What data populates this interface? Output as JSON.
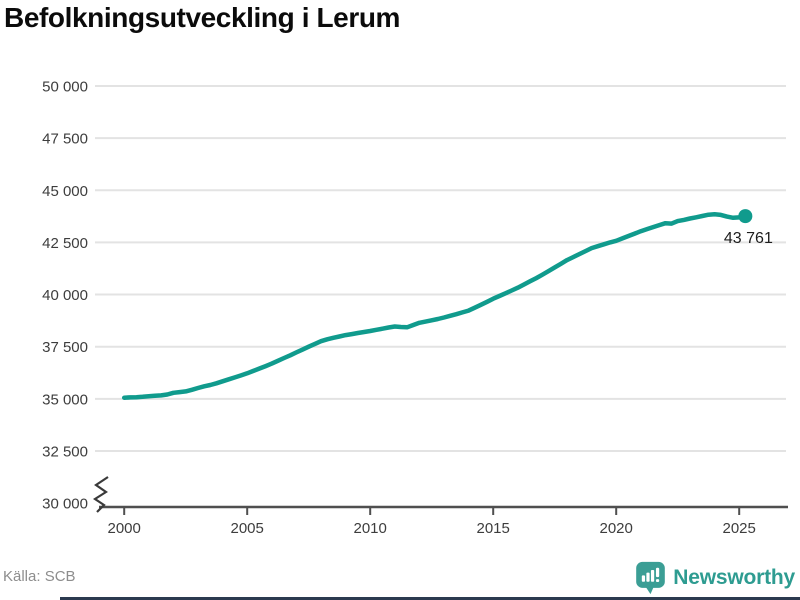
{
  "title": "Befolkningsutveckling i Lerum",
  "source": "Källa: SCB",
  "branding": {
    "name": "Newsworthy",
    "color": "#2e9c91"
  },
  "colors": {
    "line": "#109b8d",
    "grid": "#e3e3e3",
    "axis": "#4f4f4f",
    "tick_label": "#3d3d3d",
    "title": "#0b0b0b",
    "source": "#8d8d8d",
    "annotation": "#1d1d1d",
    "bottom_bar": "#2b3a4f"
  },
  "chart_data": {
    "type": "line",
    "title": "Befolkningsutveckling i Lerum",
    "xlabel": "",
    "ylabel": "",
    "xlim": [
      1999.5,
      2026.5
    ],
    "ylim": [
      30000,
      50000
    ],
    "grid": "horizontal",
    "axis_break": true,
    "legend_position": "none",
    "y_ticks": [
      {
        "value": 50000,
        "label": "50 000"
      },
      {
        "value": 47500,
        "label": "47 500"
      },
      {
        "value": 45000,
        "label": "45 000"
      },
      {
        "value": 42500,
        "label": "42 500"
      },
      {
        "value": 40000,
        "label": "40 000"
      },
      {
        "value": 37500,
        "label": "37 500"
      },
      {
        "value": 35000,
        "label": "35 000"
      },
      {
        "value": 32500,
        "label": "32 500"
      },
      {
        "value": 30000,
        "label": "30 000"
      }
    ],
    "x_ticks": [
      {
        "value": 2000,
        "label": "2000"
      },
      {
        "value": 2005,
        "label": "2005"
      },
      {
        "value": 2010,
        "label": "2010"
      },
      {
        "value": 2015,
        "label": "2015"
      },
      {
        "value": 2020,
        "label": "2020"
      },
      {
        "value": 2025,
        "label": "2025"
      }
    ],
    "end_annotation": {
      "label": "43 761",
      "value": 43761,
      "x": 2025.25
    },
    "series": [
      {
        "name": "Befolkning i Lerum",
        "color": "#109b8d",
        "points": [
          [
            2000.0,
            35055
          ],
          [
            2000.25,
            35070
          ],
          [
            2000.5,
            35080
          ],
          [
            2000.75,
            35100
          ],
          [
            2001.0,
            35125
          ],
          [
            2001.25,
            35150
          ],
          [
            2001.5,
            35165
          ],
          [
            2001.75,
            35210
          ],
          [
            2002.0,
            35290
          ],
          [
            2002.25,
            35325
          ],
          [
            2002.5,
            35355
          ],
          [
            2002.75,
            35435
          ],
          [
            2003.0,
            35520
          ],
          [
            2003.25,
            35600
          ],
          [
            2003.5,
            35665
          ],
          [
            2003.75,
            35745
          ],
          [
            2004.0,
            35840
          ],
          [
            2004.25,
            35935
          ],
          [
            2004.5,
            36030
          ],
          [
            2004.75,
            36125
          ],
          [
            2005.0,
            36225
          ],
          [
            2005.25,
            36340
          ],
          [
            2005.5,
            36455
          ],
          [
            2005.75,
            36570
          ],
          [
            2006.0,
            36690
          ],
          [
            2006.25,
            36825
          ],
          [
            2006.5,
            36960
          ],
          [
            2006.75,
            37090
          ],
          [
            2007.0,
            37225
          ],
          [
            2007.25,
            37360
          ],
          [
            2007.5,
            37500
          ],
          [
            2007.75,
            37635
          ],
          [
            2008.0,
            37765
          ],
          [
            2008.25,
            37855
          ],
          [
            2008.5,
            37925
          ],
          [
            2008.75,
            37990
          ],
          [
            2009.0,
            38055
          ],
          [
            2009.25,
            38105
          ],
          [
            2009.5,
            38155
          ],
          [
            2009.75,
            38205
          ],
          [
            2010.0,
            38255
          ],
          [
            2010.25,
            38310
          ],
          [
            2010.5,
            38365
          ],
          [
            2010.75,
            38420
          ],
          [
            2011.0,
            38470
          ],
          [
            2011.25,
            38445
          ],
          [
            2011.5,
            38430
          ],
          [
            2011.75,
            38540
          ],
          [
            2012.0,
            38645
          ],
          [
            2012.25,
            38705
          ],
          [
            2012.5,
            38765
          ],
          [
            2012.75,
            38830
          ],
          [
            2013.0,
            38900
          ],
          [
            2013.25,
            38980
          ],
          [
            2013.5,
            39060
          ],
          [
            2013.75,
            39145
          ],
          [
            2014.0,
            39230
          ],
          [
            2014.25,
            39370
          ],
          [
            2014.5,
            39510
          ],
          [
            2014.75,
            39655
          ],
          [
            2015.0,
            39800
          ],
          [
            2015.25,
            39930
          ],
          [
            2015.5,
            40060
          ],
          [
            2015.75,
            40195
          ],
          [
            2016.0,
            40330
          ],
          [
            2016.25,
            40480
          ],
          [
            2016.5,
            40635
          ],
          [
            2016.75,
            40790
          ],
          [
            2017.0,
            40950
          ],
          [
            2017.25,
            41125
          ],
          [
            2017.5,
            41300
          ],
          [
            2017.75,
            41475
          ],
          [
            2018.0,
            41650
          ],
          [
            2018.25,
            41795
          ],
          [
            2018.5,
            41940
          ],
          [
            2018.75,
            42085
          ],
          [
            2019.0,
            42230
          ],
          [
            2019.25,
            42320
          ],
          [
            2019.5,
            42410
          ],
          [
            2019.75,
            42500
          ],
          [
            2020.0,
            42580
          ],
          [
            2020.25,
            42695
          ],
          [
            2020.5,
            42810
          ],
          [
            2020.75,
            42925
          ],
          [
            2021.0,
            43040
          ],
          [
            2021.25,
            43140
          ],
          [
            2021.5,
            43235
          ],
          [
            2021.75,
            43330
          ],
          [
            2022.0,
            43420
          ],
          [
            2022.25,
            43400
          ],
          [
            2022.5,
            43520
          ],
          [
            2022.75,
            43580
          ],
          [
            2023.0,
            43645
          ],
          [
            2023.25,
            43705
          ],
          [
            2023.5,
            43765
          ],
          [
            2023.75,
            43830
          ],
          [
            2024.0,
            43850
          ],
          [
            2024.25,
            43820
          ],
          [
            2024.5,
            43740
          ],
          [
            2024.75,
            43680
          ],
          [
            2025.0,
            43700
          ],
          [
            2025.25,
            43761
          ]
        ]
      }
    ]
  }
}
